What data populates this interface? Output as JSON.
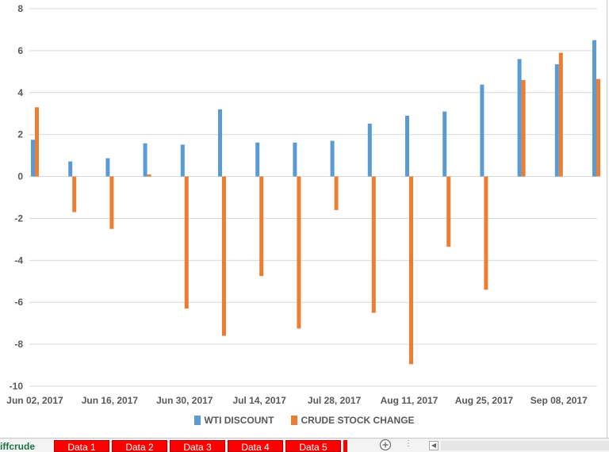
{
  "chart_data": {
    "type": "bar",
    "title": "",
    "xlabel": "",
    "ylabel": "",
    "ylim": [
      -10,
      8
    ],
    "yticks": [
      -10,
      -8,
      -6,
      -4,
      -2,
      0,
      2,
      4,
      6,
      8
    ],
    "x_tick_labels": [
      "Jun 02, 2017",
      "Jun 16, 2017",
      "Jun 30, 2017",
      "Jul 14, 2017",
      "Jul 28, 2017",
      "Aug 11, 2017",
      "Aug 25, 2017",
      "Sep 08, 2017"
    ],
    "categories": [
      "Jun 02, 2017",
      "Jun 09, 2017",
      "Jun 16, 2017",
      "Jun 23, 2017",
      "Jun 30, 2017",
      "Jul 07, 2017",
      "Jul 14, 2017",
      "Jul 21, 2017",
      "Jul 28, 2017",
      "Aug 04, 2017",
      "Aug 11, 2017",
      "Aug 18, 2017",
      "Aug 25, 2017",
      "Sep 01, 2017",
      "Sep 08, 2017",
      "Sep 15, 2017"
    ],
    "grid": true,
    "legend_position": "bottom",
    "series": [
      {
        "name": "WTI DISCOUNT",
        "color": "#5b9bd5",
        "values": [
          1.75,
          0.72,
          0.87,
          1.58,
          1.52,
          3.2,
          1.62,
          1.62,
          1.7,
          2.52,
          2.9,
          3.1,
          4.38,
          5.6,
          5.35,
          6.5
        ]
      },
      {
        "name": "CRUDE STOCK CHANGE",
        "color": "#ed7d31",
        "values": [
          3.3,
          -1.7,
          -2.5,
          0.1,
          -6.3,
          -7.6,
          -4.75,
          -7.25,
          -1.6,
          -6.5,
          -8.95,
          -3.35,
          -5.4,
          4.6,
          5.9,
          4.65
        ]
      }
    ]
  },
  "sheet_bar": {
    "partial_name": "iffcrude",
    "tabs": [
      "Data 1",
      "Data 2",
      "Data 3",
      "Data 4",
      "Data 5"
    ],
    "add_icon": "plus-circle-icon",
    "dots": "⋮",
    "scroll_left_icon": "triangle-left-icon"
  }
}
